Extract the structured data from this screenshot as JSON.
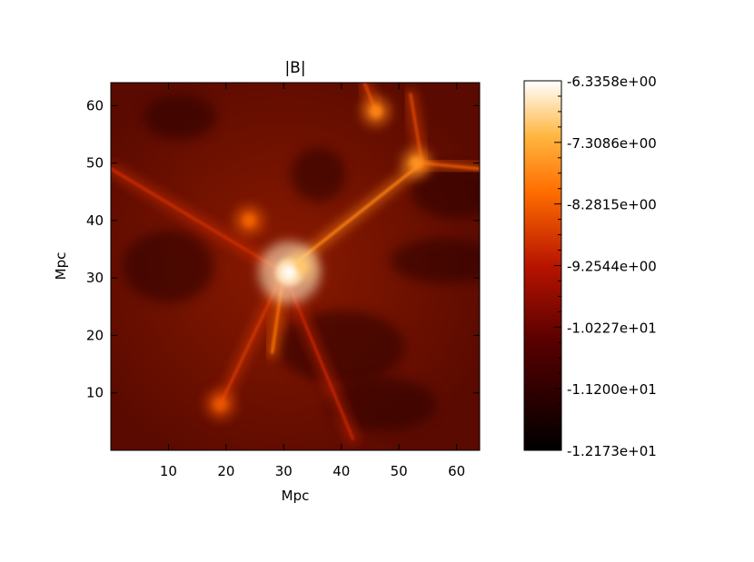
{
  "chart_data": {
    "type": "heatmap",
    "title": "|B|",
    "xlabel": "Mpc",
    "ylabel": "Mpc",
    "xlim": [
      0,
      64
    ],
    "ylim": [
      0,
      64
    ],
    "x_ticks": [
      10,
      20,
      30,
      40,
      50,
      60
    ],
    "y_ticks": [
      10,
      20,
      30,
      40,
      50,
      60
    ],
    "colormap": "hot (black-red-orange-white)",
    "colorbar": {
      "range": [
        -12.173,
        -6.3358
      ],
      "tick_labels": [
        "-6.3358e+00",
        "-7.3086e+00",
        "-8.2815e+00",
        "-9.2544e+00",
        "-1.0227e+01",
        "-1.1200e+01",
        "-1.2173e+01"
      ],
      "tick_values": [
        -6.3358,
        -7.3086,
        -8.2815,
        -9.2544,
        -10.227,
        -11.2,
        -12.173
      ]
    },
    "features": [
      {
        "kind": "core",
        "x": 31,
        "y": 31,
        "value": -6.6
      },
      {
        "kind": "clump",
        "x": 33,
        "y": 32,
        "value": -7.0
      },
      {
        "kind": "clump",
        "x": 46,
        "y": 59,
        "value": -7.8
      },
      {
        "kind": "clump",
        "x": 53,
        "y": 50,
        "value": -7.6
      },
      {
        "kind": "clump",
        "x": 24,
        "y": 40,
        "value": -8.2
      },
      {
        "kind": "clump",
        "x": 19,
        "y": 8,
        "value": -8.4
      },
      {
        "kind": "filament",
        "from": [
          30,
          31
        ],
        "to": [
          54,
          50
        ],
        "value": -7.8
      },
      {
        "kind": "filament",
        "from": [
          54,
          50
        ],
        "to": [
          64,
          49
        ],
        "value": -8.3
      },
      {
        "kind": "filament",
        "from": [
          54,
          50
        ],
        "to": [
          52,
          62
        ],
        "value": -8.6
      },
      {
        "kind": "filament",
        "from": [
          30,
          31
        ],
        "to": [
          0,
          49
        ],
        "value": -8.9
      },
      {
        "kind": "filament",
        "from": [
          30,
          31
        ],
        "to": [
          28,
          17
        ],
        "value": -8.0
      },
      {
        "kind": "filament",
        "from": [
          30,
          31
        ],
        "to": [
          42,
          2
        ],
        "value": -9.0
      },
      {
        "kind": "filament",
        "from": [
          30,
          31
        ],
        "to": [
          19,
          8
        ],
        "value": -8.8
      },
      {
        "kind": "filament",
        "from": [
          46,
          59
        ],
        "to": [
          44,
          64
        ],
        "value": -8.6
      }
    ]
  }
}
